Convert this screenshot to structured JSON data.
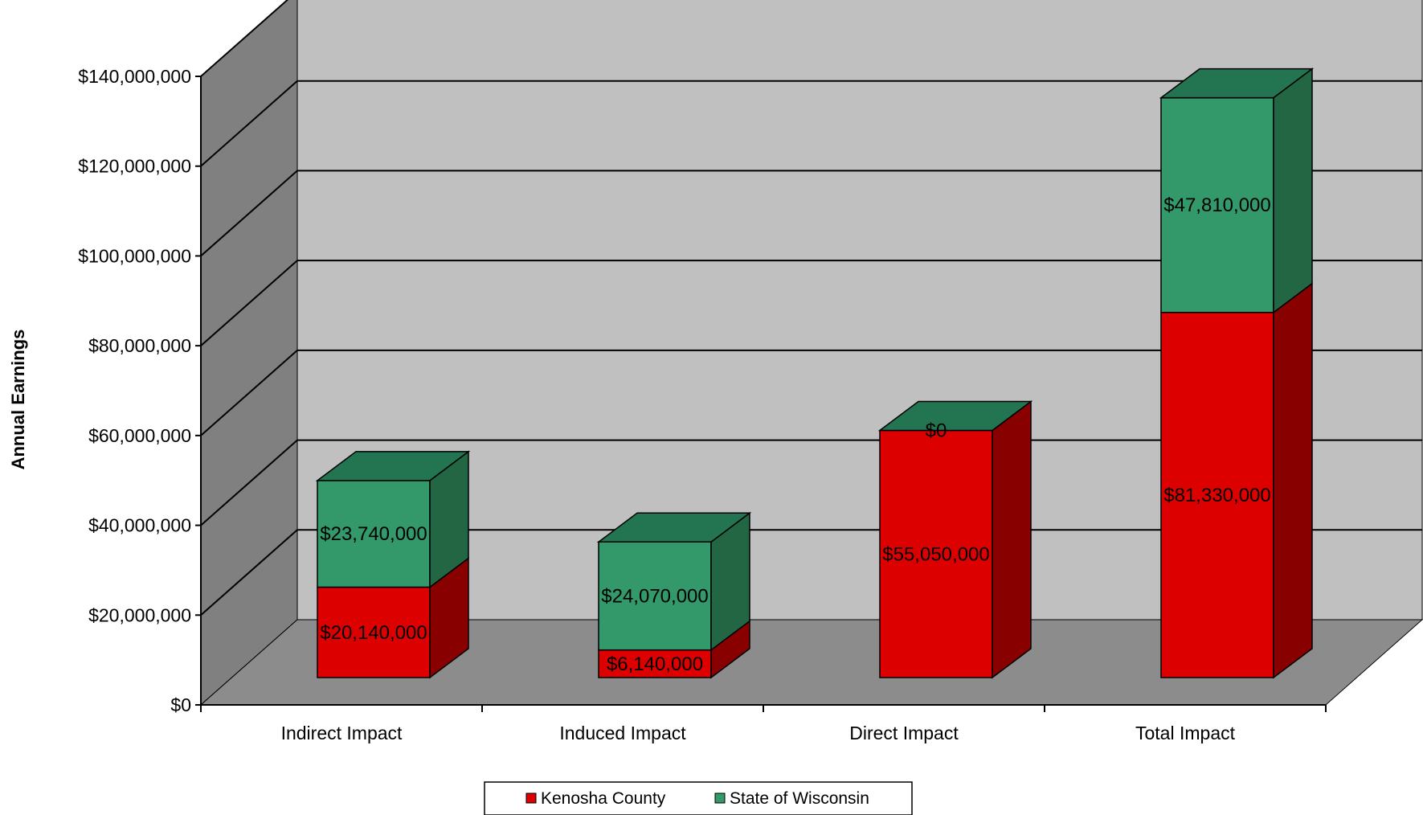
{
  "chart_data": {
    "type": "bar",
    "stacked": true,
    "three_d": true,
    "title": "",
    "xlabel": "",
    "ylabel": "Annual Earnings",
    "ylim": [
      0,
      140000000
    ],
    "yticks": [
      0,
      20000000,
      40000000,
      60000000,
      80000000,
      100000000,
      120000000,
      140000000
    ],
    "ytick_labels": [
      "$0",
      "$20,000,000",
      "$40,000,000",
      "$60,000,000",
      "$80,000,000",
      "$100,000,000",
      "$120,000,000",
      "$140,000,000"
    ],
    "grid": true,
    "legend_position": "bottom",
    "categories": [
      "Indirect Impact",
      "Induced Impact",
      "Direct Impact",
      "Total Impact"
    ],
    "series": [
      {
        "name": "Kenosha County",
        "values": [
          20140000,
          6140000,
          55050000,
          81330000
        ],
        "labels": [
          "$20,140,000",
          "$6,140,000",
          "$55,050,000",
          "$81,330,000"
        ],
        "color": "#dd0000",
        "side_color": "#880000",
        "top_color": "#a80000"
      },
      {
        "name": "State of Wisconsin",
        "values": [
          23740000,
          24070000,
          0,
          47810000
        ],
        "labels": [
          "$23,740,000",
          "$24,070,000",
          "$0",
          "$47,810,000"
        ],
        "color": "#33996a",
        "side_color": "#226644",
        "top_color": "#227550"
      }
    ],
    "colors": {
      "back_wall": "#c0c0c0",
      "side_wall": "#808080",
      "floor": "#8c8c8c",
      "gridline": "#000000"
    }
  }
}
